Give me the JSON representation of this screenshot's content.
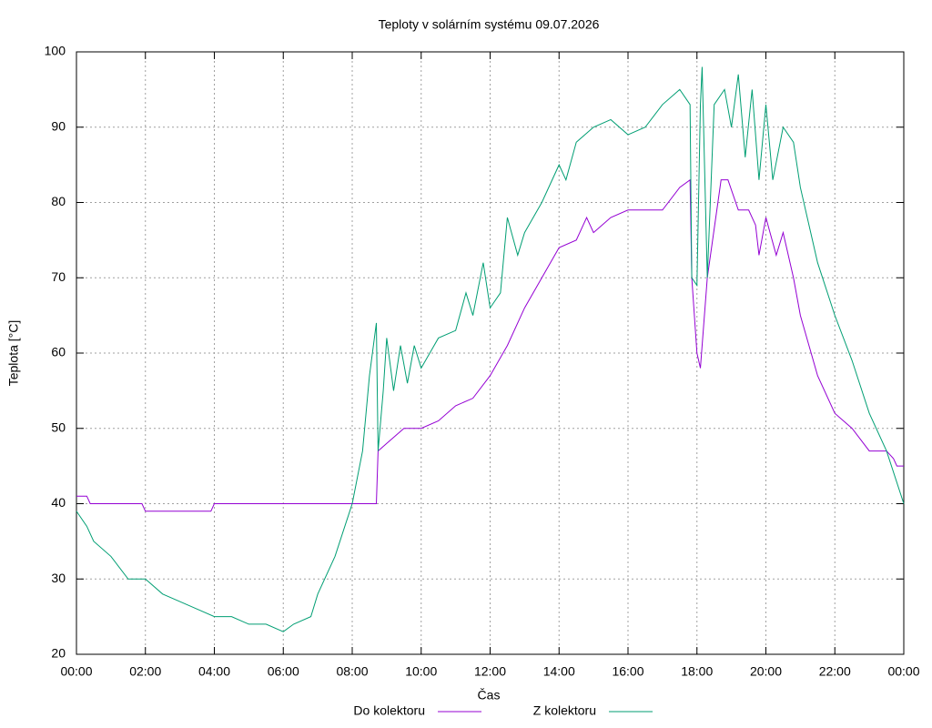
{
  "chart_data": {
    "type": "line",
    "title": "Teploty v solárním systému 09.07.2026",
    "xlabel": "Čas",
    "ylabel": "Teplota [°C]",
    "xlim": [
      0,
      24
    ],
    "ylim": [
      20,
      100
    ],
    "xticks": [
      {
        "value": 0,
        "label": "00:00"
      },
      {
        "value": 2,
        "label": "02:00"
      },
      {
        "value": 4,
        "label": "04:00"
      },
      {
        "value": 6,
        "label": "06:00"
      },
      {
        "value": 8,
        "label": "08:00"
      },
      {
        "value": 10,
        "label": "10:00"
      },
      {
        "value": 12,
        "label": "12:00"
      },
      {
        "value": 14,
        "label": "14:00"
      },
      {
        "value": 16,
        "label": "16:00"
      },
      {
        "value": 18,
        "label": "18:00"
      },
      {
        "value": 20,
        "label": "20:00"
      },
      {
        "value": 22,
        "label": "22:00"
      },
      {
        "value": 24,
        "label": "00:00"
      }
    ],
    "yticks": [
      20,
      30,
      40,
      50,
      60,
      70,
      80,
      90,
      100
    ],
    "grid": true,
    "legend": "bottom",
    "series": [
      {
        "name": "Do kolektoru",
        "color": "#9400d3",
        "x": [
          0,
          0.3,
          0.4,
          1.9,
          2.0,
          3.9,
          4.0,
          8.7,
          8.75,
          9.0,
          9.5,
          10.0,
          10.5,
          11.0,
          11.5,
          12.0,
          12.5,
          13.0,
          13.5,
          14.0,
          14.5,
          14.8,
          15.0,
          15.5,
          16.0,
          17.0,
          17.5,
          17.8,
          17.85,
          18.0,
          18.1,
          18.3,
          18.7,
          18.9,
          19.2,
          19.5,
          19.7,
          19.8,
          20.0,
          20.3,
          20.5,
          20.8,
          21.0,
          21.5,
          22.0,
          22.5,
          23.0,
          23.5,
          23.7,
          23.8,
          24.0
        ],
        "values": [
          41,
          41,
          40,
          40,
          39,
          39,
          40,
          40,
          47,
          48,
          50,
          50,
          51,
          53,
          54,
          57,
          61,
          66,
          70,
          74,
          75,
          78,
          76,
          78,
          79,
          79,
          82,
          83,
          70,
          60,
          58,
          70,
          83,
          83,
          79,
          79,
          77,
          73,
          78,
          73,
          76,
          70,
          65,
          57,
          52,
          50,
          47,
          47,
          46,
          45,
          45
        ]
      },
      {
        "name": "Z kolektoru",
        "color": "#009e73",
        "x": [
          0,
          0.3,
          0.5,
          1.0,
          1.5,
          2.0,
          2.5,
          3.0,
          3.5,
          4.0,
          4.5,
          5.0,
          5.5,
          6.0,
          6.3,
          6.8,
          7.0,
          7.5,
          8.0,
          8.3,
          8.5,
          8.7,
          8.75,
          8.9,
          9.0,
          9.2,
          9.4,
          9.6,
          9.8,
          10.0,
          10.5,
          11.0,
          11.3,
          11.5,
          11.8,
          12.0,
          12.3,
          12.5,
          12.8,
          13.0,
          13.5,
          14.0,
          14.2,
          14.5,
          15.0,
          15.5,
          16.0,
          16.5,
          17.0,
          17.5,
          17.8,
          17.85,
          18.0,
          18.1,
          18.15,
          18.3,
          18.5,
          18.8,
          19.0,
          19.2,
          19.4,
          19.6,
          19.8,
          20.0,
          20.2,
          20.5,
          20.8,
          21.0,
          21.5,
          22.0,
          22.5,
          23.0,
          23.5,
          24.0
        ],
        "values": [
          39,
          37,
          35,
          33,
          30,
          30,
          28,
          27,
          26,
          25,
          25,
          24,
          24,
          23,
          24,
          25,
          28,
          33,
          40,
          47,
          57,
          64,
          47,
          55,
          62,
          55,
          61,
          56,
          61,
          58,
          62,
          63,
          68,
          65,
          72,
          66,
          68,
          78,
          73,
          76,
          80,
          85,
          83,
          88,
          90,
          91,
          89,
          90,
          93,
          95,
          93,
          70,
          69,
          93,
          98,
          70,
          93,
          95,
          90,
          97,
          86,
          95,
          83,
          93,
          83,
          90,
          88,
          82,
          72,
          65,
          59,
          52,
          47,
          40
        ]
      }
    ]
  }
}
